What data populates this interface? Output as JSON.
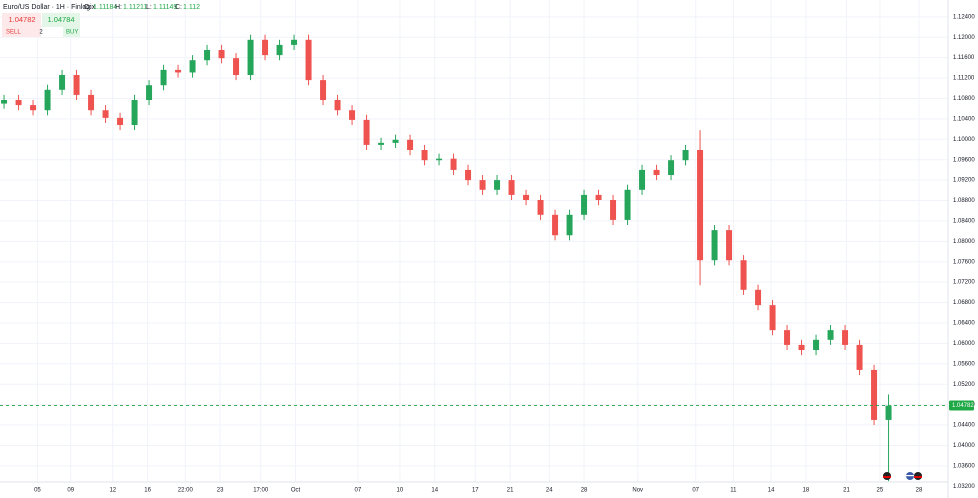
{
  "header": {
    "symbol": "Euro/US Dollar · 1H · Finlogix",
    "o_label": "O:",
    "o": 1.11184,
    "h_label": "H:",
    "h": 1.11211,
    "l_label": "L:",
    "l": 1.11149,
    "c_label": "C:",
    "c": 1.112
  },
  "trade_panel": {
    "sell_price": 1.04782,
    "sell_label": "SELL",
    "quantity": 2,
    "buy_label": "BUY",
    "buy_price": 1.04784
  },
  "chart_data": {
    "type": "candlestick",
    "x": [
      0,
      1,
      2,
      3,
      4,
      5,
      6,
      7,
      8,
      9,
      10,
      11,
      12,
      13,
      14,
      15,
      16,
      17,
      18,
      19,
      20,
      21,
      22,
      23,
      24,
      25,
      26,
      27,
      28,
      29,
      30,
      31,
      32,
      33,
      34,
      35,
      36,
      37,
      38,
      39,
      40,
      41,
      42,
      43,
      44,
      45,
      46,
      47,
      48,
      49,
      50,
      51,
      52,
      53,
      54,
      55,
      56,
      57,
      58,
      59,
      60,
      61
    ],
    "open": [
      1.107,
      1.1077,
      1.1067,
      1.1057,
      1.1097,
      1.1126,
      1.1087,
      1.1057,
      1.1042,
      1.1028,
      1.1077,
      1.1106,
      1.1136,
      1.1131,
      1.1155,
      1.1175,
      1.1159,
      1.1126,
      1.1195,
      1.1165,
      1.1185,
      1.1195,
      1.1116,
      1.1077,
      1.1057,
      1.1038,
      1.0989,
      1.0993,
      1.0999,
      1.0979,
      1.0959,
      1.0962,
      1.094,
      1.092,
      1.0901,
      1.092,
      1.0891,
      1.0881,
      1.0852,
      1.0812,
      1.0852,
      1.0891,
      1.0881,
      1.0842,
      1.0901,
      1.094,
      1.093,
      1.0959,
      1.0979,
      1.0763,
      1.0822,
      1.0763,
      1.0705,
      1.0675,
      1.0626,
      1.0597,
      1.0587,
      1.0607,
      1.0626,
      1.0597,
      1.0548,
      1.045
    ],
    "high": [
      1.1087,
      1.1087,
      1.1077,
      1.1107,
      1.1136,
      1.1136,
      1.1097,
      1.1067,
      1.1052,
      1.1087,
      1.1116,
      1.1146,
      1.1146,
      1.1165,
      1.1185,
      1.1185,
      1.1169,
      1.1205,
      1.1205,
      1.1195,
      1.1205,
      1.1205,
      1.1126,
      1.1087,
      1.1067,
      1.1048,
      1.1003,
      1.1009,
      1.1009,
      1.0989,
      1.0972,
      1.0972,
      1.095,
      1.093,
      1.093,
      1.093,
      1.0901,
      1.0891,
      1.0862,
      1.0862,
      1.0901,
      1.0901,
      1.0891,
      1.0911,
      1.095,
      1.095,
      1.0969,
      1.0989,
      1.1018,
      1.0832,
      1.0832,
      1.0773,
      1.0715,
      1.0685,
      1.0636,
      1.0607,
      1.0617,
      1.0636,
      1.0636,
      1.0607,
      1.0558,
      1.05
    ],
    "low": [
      1.106,
      1.1057,
      1.1047,
      1.1047,
      1.1087,
      1.1077,
      1.1047,
      1.1032,
      1.1018,
      1.1018,
      1.1067,
      1.1096,
      1.1121,
      1.1121,
      1.1145,
      1.1149,
      1.1116,
      1.1116,
      1.1155,
      1.1155,
      1.1175,
      1.1106,
      1.1067,
      1.1047,
      1.1028,
      1.0979,
      1.0979,
      1.0983,
      1.0969,
      1.0949,
      1.0949,
      1.093,
      1.091,
      1.0891,
      1.0891,
      1.0881,
      1.0871,
      1.0842,
      1.0802,
      1.0802,
      1.0842,
      1.0871,
      1.0832,
      1.0832,
      1.0891,
      1.092,
      1.092,
      1.0949,
      1.0714,
      1.0753,
      1.0753,
      1.0695,
      1.0665,
      1.0616,
      1.0587,
      1.0577,
      1.0577,
      1.0597,
      1.0587,
      1.0538,
      1.044,
      1.033
    ],
    "close": [
      1.1077,
      1.1067,
      1.1057,
      1.1097,
      1.1126,
      1.1087,
      1.1057,
      1.1042,
      1.1028,
      1.1077,
      1.1106,
      1.1136,
      1.1131,
      1.1155,
      1.1175,
      1.1159,
      1.1126,
      1.1195,
      1.1165,
      1.1185,
      1.1195,
      1.1116,
      1.1077,
      1.1057,
      1.1038,
      1.0989,
      1.0993,
      1.0999,
      1.0979,
      1.0959,
      1.0962,
      1.094,
      1.092,
      1.0901,
      1.092,
      1.0891,
      1.0881,
      1.0852,
      1.0812,
      1.0852,
      1.0891,
      1.0881,
      1.0842,
      1.0901,
      1.094,
      1.093,
      1.0959,
      1.0979,
      1.0763,
      1.0822,
      1.0763,
      1.0705,
      1.0675,
      1.0626,
      1.0597,
      1.0587,
      1.0607,
      1.0626,
      1.0597,
      1.0548,
      1.045,
      1.0478
    ],
    "up_color": "#26a65b",
    "down_color": "#ef5350",
    "last_price": 1.04782,
    "last_price_color": "#1fa846",
    "xlim": [
      -0.28,
      65.1
    ],
    "xticks": [
      {
        "value": 2.3,
        "label": "05"
      },
      {
        "value": 4.6,
        "label": "09"
      },
      {
        "value": 7.5,
        "label": "12"
      },
      {
        "value": 9.9,
        "label": "16"
      },
      {
        "value": 12.5,
        "label": "22:00"
      },
      {
        "value": 14.9,
        "label": "23"
      },
      {
        "value": 17.7,
        "label": "17:00"
      },
      {
        "value": 20.1,
        "label": "Oct"
      },
      {
        "value": 24.4,
        "label": "07"
      },
      {
        "value": 27.3,
        "label": "10"
      },
      {
        "value": 29.7,
        "label": "14"
      },
      {
        "value": 32.5,
        "label": "17"
      },
      {
        "value": 34.9,
        "label": "21"
      },
      {
        "value": 37.6,
        "label": "24"
      },
      {
        "value": 40.0,
        "label": "28"
      },
      {
        "value": 43.7,
        "label": "Nov"
      },
      {
        "value": 47.7,
        "label": "07"
      },
      {
        "value": 50.3,
        "label": "11"
      },
      {
        "value": 52.9,
        "label": "14"
      },
      {
        "value": 55.3,
        "label": "18"
      },
      {
        "value": 58.1,
        "label": "21"
      },
      {
        "value": 60.4,
        "label": "25"
      },
      {
        "value": 63.1,
        "label": "28"
      }
    ],
    "ylim": [
      1.0297,
      1.1273
    ],
    "yticks": [
      {
        "value": 1.124,
        "label": "1.12400"
      },
      {
        "value": 1.12,
        "label": "1.12000"
      },
      {
        "value": 1.116,
        "label": "1.11600"
      },
      {
        "value": 1.112,
        "label": "1.11200"
      },
      {
        "value": 1.108,
        "label": "1.10800"
      },
      {
        "value": 1.104,
        "label": "1.10400"
      },
      {
        "value": 1.1,
        "label": "1.10000"
      },
      {
        "value": 1.096,
        "label": "1.09600"
      },
      {
        "value": 1.092,
        "label": "1.09200"
      },
      {
        "value": 1.088,
        "label": "1.08800"
      },
      {
        "value": 1.084,
        "label": "1.08400"
      },
      {
        "value": 1.08,
        "label": "1.08000"
      },
      {
        "value": 1.076,
        "label": "1.07600"
      },
      {
        "value": 1.072,
        "label": "1.07200"
      },
      {
        "value": 1.068,
        "label": "1.06800"
      },
      {
        "value": 1.064,
        "label": "1.06400"
      },
      {
        "value": 1.06,
        "label": "1.06000"
      },
      {
        "value": 1.056,
        "label": "1.05600"
      },
      {
        "value": 1.052,
        "label": "1.05200"
      },
      {
        "value": 1.048,
        "label": "1.04800"
      },
      {
        "value": 1.044,
        "label": "1.04400"
      },
      {
        "value": 1.04,
        "label": "1.04000"
      },
      {
        "value": 1.036,
        "label": "1.03600"
      },
      {
        "value": 1.032,
        "label": "1.03200"
      }
    ],
    "grid": true
  }
}
